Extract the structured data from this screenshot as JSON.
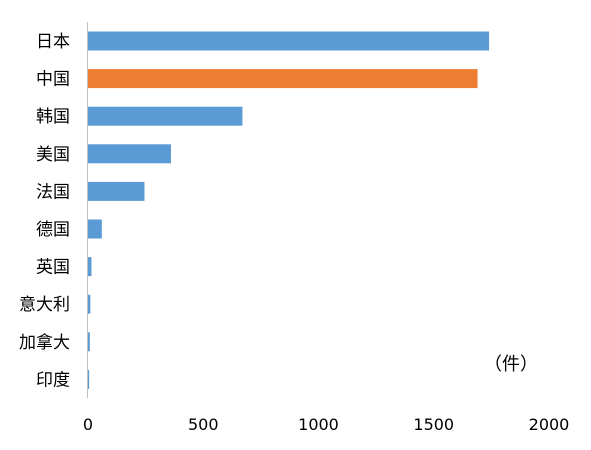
{
  "chart_data": {
    "type": "bar",
    "orientation": "horizontal",
    "categories": [
      "日本",
      "中国",
      "韩国",
      "美国",
      "法国",
      "德国",
      "英国",
      "意大利",
      "加拿大",
      "印度"
    ],
    "values": [
      1740,
      1690,
      670,
      360,
      245,
      60,
      15,
      10,
      8,
      5
    ],
    "highlight_category": "中国",
    "colors": {
      "default": "#5B9BD5",
      "highlight": "#ED7D31",
      "axis": "#BFBFBF"
    },
    "unit_label": "（件）",
    "xticks": [
      "0",
      "500",
      "1000",
      "1500",
      "2000"
    ],
    "xlim": [
      0,
      2000
    ],
    "grid": false,
    "legend": "none"
  }
}
